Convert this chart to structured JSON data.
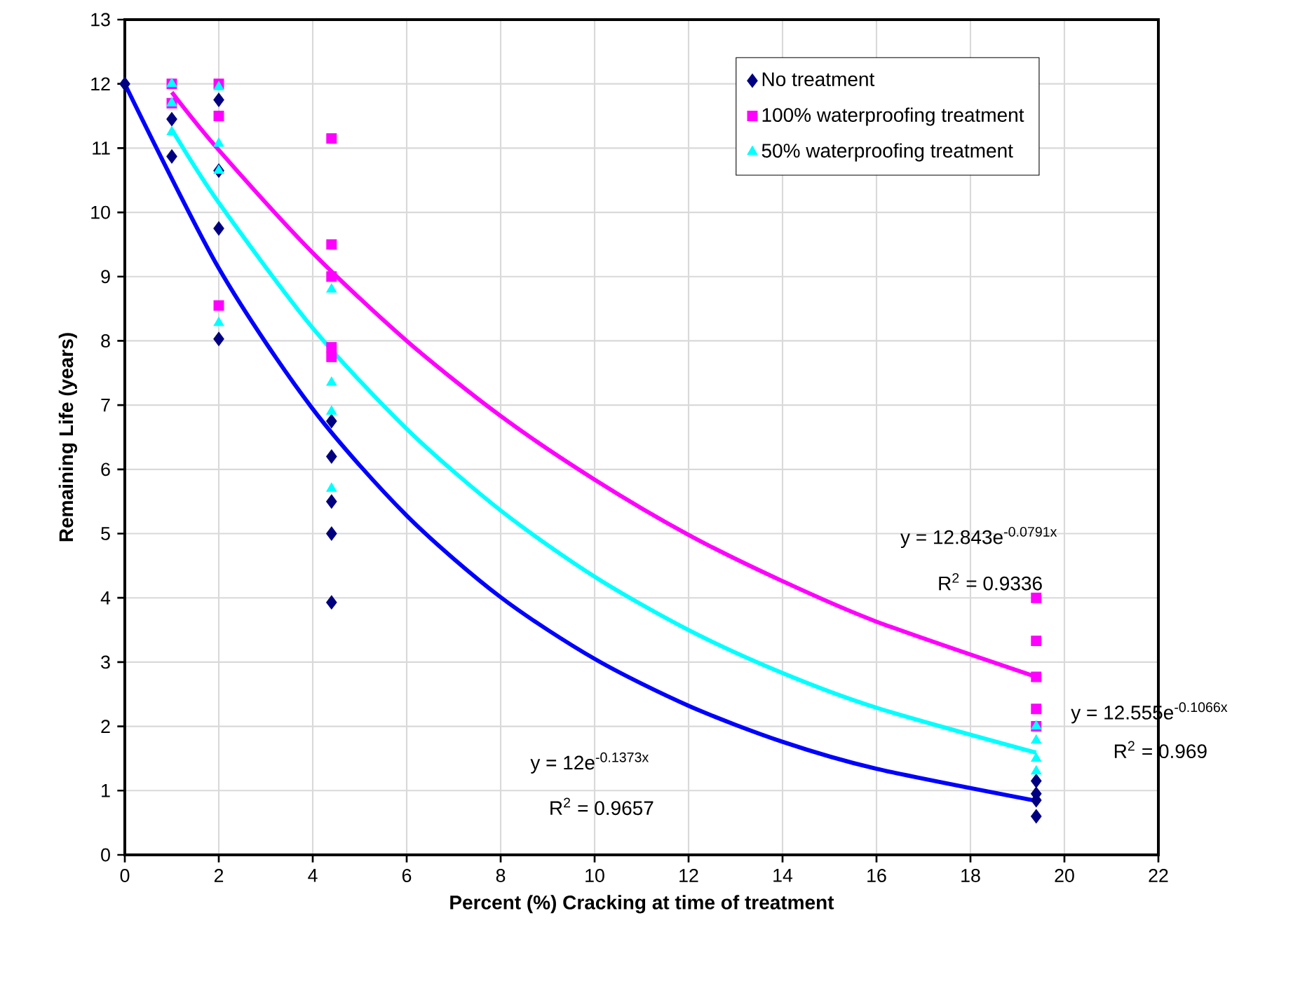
{
  "chart_data": {
    "type": "scatter",
    "xlabel": "Percent (%) Cracking at time of treatment",
    "ylabel": "Remaining Life (years)",
    "xlim": [
      0,
      22
    ],
    "xticks": [
      0,
      2,
      4,
      6,
      8,
      10,
      12,
      14,
      16,
      18,
      20,
      22
    ],
    "ylim": [
      0,
      13
    ],
    "yticks": [
      0,
      1,
      2,
      3,
      4,
      5,
      6,
      7,
      8,
      9,
      10,
      11,
      12,
      13
    ],
    "grid": true,
    "legend": "top right",
    "series": [
      {
        "name": "No treatment",
        "marker": "diamond",
        "color": "#000080",
        "x": [
          0,
          1,
          1,
          2,
          2,
          2,
          2,
          4.4,
          4.4,
          4.4,
          4.4,
          4.4,
          19.4,
          19.4,
          19.4,
          19.4
        ],
        "values": [
          12,
          11.45,
          10.87,
          11.75,
          10.65,
          9.75,
          8.03,
          6.75,
          6.2,
          5.5,
          5.0,
          3.93,
          1.15,
          0.95,
          0.85,
          0.6
        ]
      },
      {
        "name": "100% waterproofing treatment",
        "marker": "square",
        "color": "#ff00ff",
        "x": [
          1,
          1,
          2,
          2,
          2,
          4.4,
          4.4,
          4.4,
          4.4,
          4.4,
          19.4,
          19.4,
          19.4,
          19.4,
          19.4
        ],
        "values": [
          12,
          11.7,
          12,
          11.5,
          8.55,
          11.15,
          9.5,
          9.0,
          7.9,
          7.75,
          4.0,
          3.33,
          2.77,
          2.27,
          2.0
        ]
      },
      {
        "name": "50% waterproofing treatment",
        "marker": "triangle",
        "color": "#00ffff",
        "x": [
          1,
          1,
          1,
          2,
          2,
          2,
          2,
          4.4,
          4.4,
          4.4,
          4.4,
          19.4,
          19.4,
          19.4,
          19.4
        ],
        "values": [
          12,
          11.7,
          11.25,
          11.95,
          11.07,
          10.65,
          8.28,
          8.8,
          7.35,
          6.9,
          5.7,
          2.0,
          1.78,
          1.5,
          1.3
        ]
      },
      {
        "type": "line",
        "color": "#0000ff",
        "x": [
          0,
          2,
          4,
          6,
          8,
          10,
          12,
          14,
          16,
          19.4
        ],
        "values": [
          12,
          9.13,
          6.94,
          5.28,
          4.01,
          3.05,
          2.32,
          1.76,
          1.34,
          0.84
        ]
      },
      {
        "type": "line",
        "color": "#ff00ff",
        "x": [
          1,
          2,
          4,
          6,
          8,
          10,
          12,
          14,
          16,
          19.4
        ],
        "values": [
          11.87,
          10.97,
          9.37,
          8.0,
          6.83,
          5.84,
          4.98,
          4.26,
          3.63,
          2.77
        ]
      },
      {
        "type": "line",
        "color": "#00ffff",
        "x": [
          1,
          2,
          4,
          6,
          8,
          10,
          12,
          14,
          16,
          19.4
        ],
        "values": [
          11.29,
          10.15,
          8.2,
          6.63,
          5.36,
          4.33,
          3.5,
          2.83,
          2.29,
          1.59
        ]
      }
    ],
    "annotations": [
      "y = 12e$^{-0.1373x}$",
      "R$^{2}$ = 0.9657",
      "y = 12.843e$^{-0.0791x}$",
      "R$^{2}$ = 0.9336",
      "y = 12.555e$^{-0.1066x}$",
      "R$^{2}$ = 0.969"
    ]
  }
}
